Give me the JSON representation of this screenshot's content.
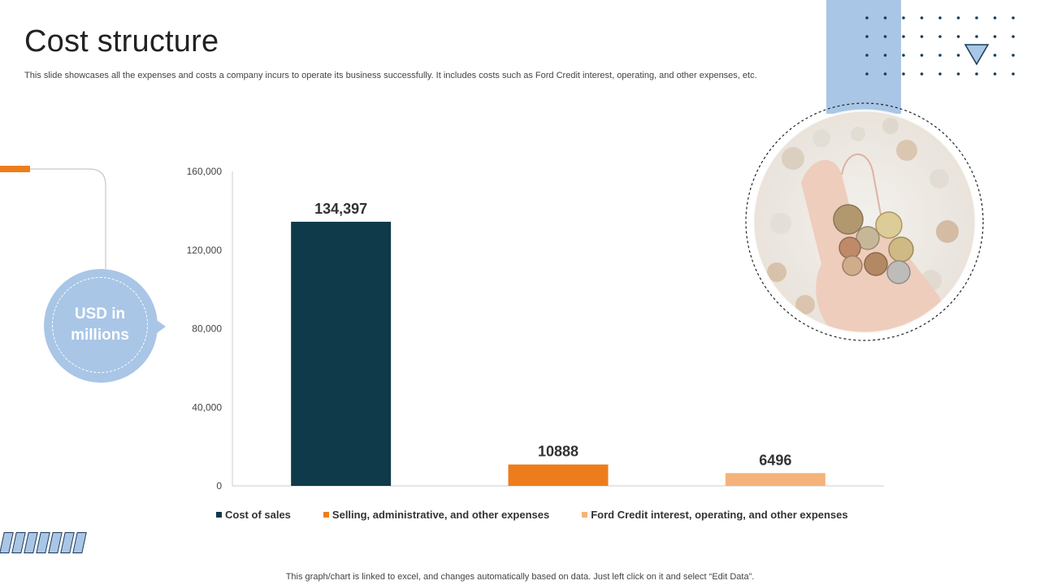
{
  "slide": {
    "title": "Cost structure",
    "subtitle": "This slide showcases all the expenses and costs a company incurs to operate its business successfully. It includes costs such as Ford Credit interest, operating, and other expenses, etc.",
    "unit_label": "USD in\nmillions",
    "footer": "This graph/chart is linked to excel,  and changes automatically based on data. Just left click on it and select “Edit Data”."
  },
  "colors": {
    "accent_blue": "#a9c6e6",
    "accent_orange": "#ed7d1c",
    "dark_teal": "#0f3a4a",
    "light_orange": "#f4b37a"
  },
  "icons": {
    "triangle": "down-triangle-icon",
    "photo": "coins-in-hand-photo"
  },
  "chart_data": {
    "type": "bar",
    "categories": [
      "Cost of sales",
      "Selling, administrative, and other expenses",
      "Ford Credit interest, operating, and other expenses"
    ],
    "values": [
      134397,
      10888,
      6496
    ],
    "value_labels": [
      "134,397",
      "10888",
      "6496"
    ],
    "colors": [
      "#0f3a4a",
      "#ed7d1c",
      "#f4b37a"
    ],
    "ylim": [
      0,
      160000
    ],
    "yticks": [
      0,
      40000,
      80000,
      120000,
      160000
    ],
    "ytick_labels": [
      "0",
      "40,000",
      "80,000",
      "120,000",
      "160,000"
    ],
    "legend_position": "bottom",
    "grid": false,
    "title": "",
    "xlabel": "",
    "ylabel": ""
  }
}
